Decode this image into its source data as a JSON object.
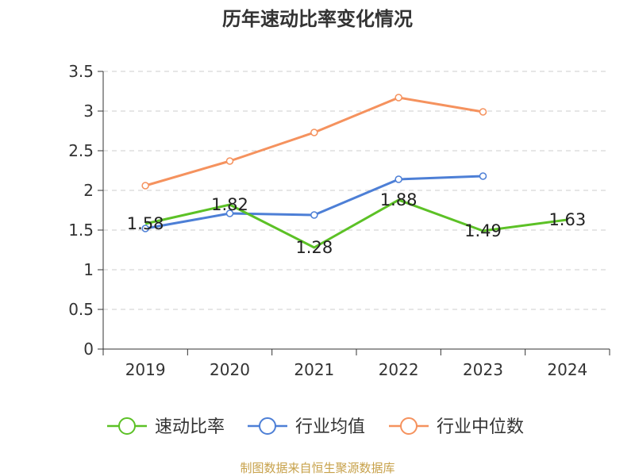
{
  "chart_data": {
    "type": "line",
    "title": "历年速动比率变化情况",
    "categories": [
      "2019",
      "2020",
      "2021",
      "2022",
      "2023",
      "2024"
    ],
    "ylim": [
      0,
      3.5
    ],
    "y_ticks": [
      "0",
      "0.5",
      "1",
      "1.5",
      "2",
      "2.5",
      "3",
      "3.5"
    ],
    "grid": true,
    "legend_position": "bottom",
    "series": [
      {
        "name": "速动比率",
        "color": "#5cc126",
        "values": [
          1.58,
          1.82,
          1.28,
          1.88,
          1.49,
          1.63
        ],
        "labels": [
          "1.58",
          "1.82",
          "1.28",
          "1.88",
          "1.49",
          "1.63"
        ]
      },
      {
        "name": "行业均值",
        "color": "#4d7fd6",
        "values": [
          1.52,
          1.71,
          1.69,
          2.14,
          2.18,
          null
        ]
      },
      {
        "name": "行业中位数",
        "color": "#f5925e",
        "values": [
          2.06,
          2.37,
          2.73,
          3.17,
          2.99,
          null
        ]
      }
    ]
  },
  "footer": {
    "source": "制图数据来自恒生聚源数据库",
    "source_color": "#c7a14a"
  }
}
